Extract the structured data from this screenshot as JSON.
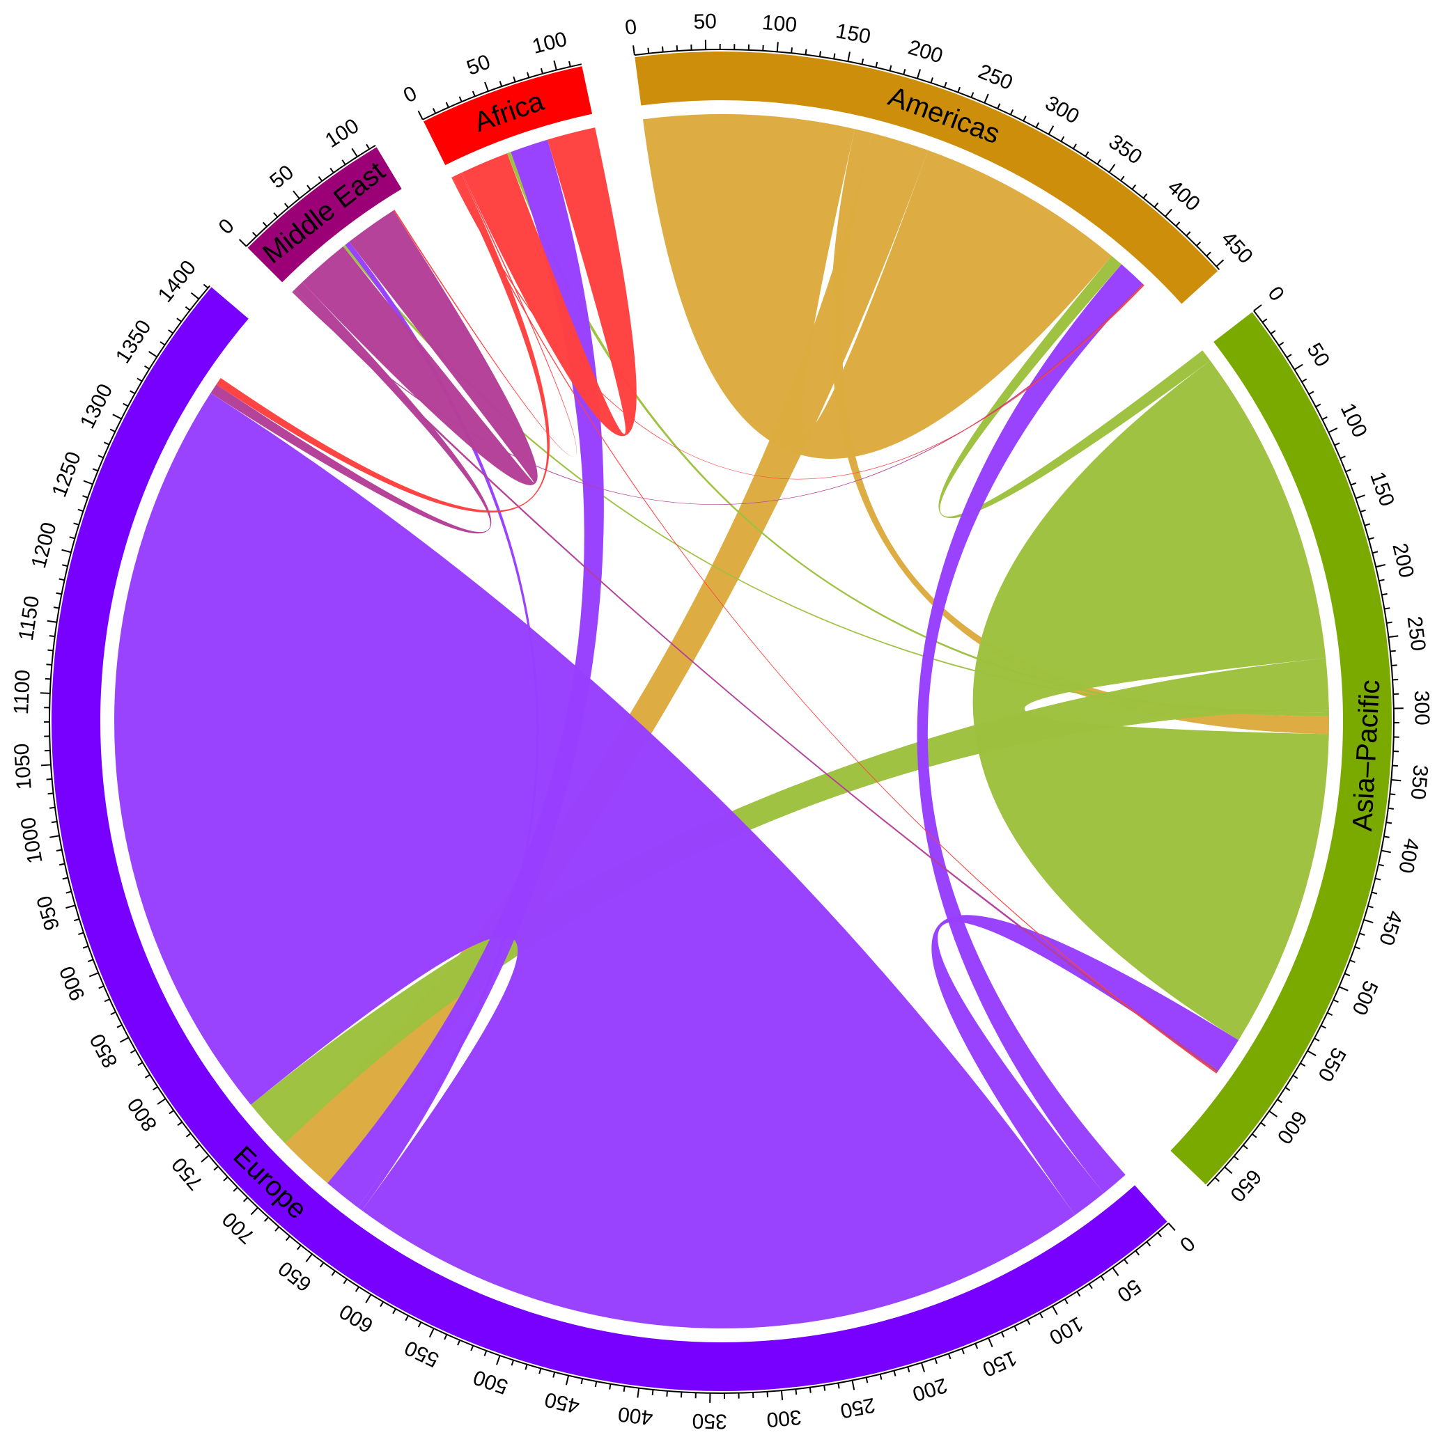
{
  "chart_data": {
    "type": "chord",
    "title": "",
    "sectors": [
      {
        "name": "Americas",
        "total": 453,
        "color": "#cd8f0b",
        "chord_color": "#dcab3f",
        "ticks": [
          "0",
          "50",
          "100",
          "150",
          "200",
          "250",
          "300",
          "350",
          "400",
          "450"
        ]
      },
      {
        "name": "Asia–Pacific",
        "total": 668,
        "color": "#7aaa00",
        "chord_color": "#9dc13f",
        "ticks": [
          "0",
          "50",
          "100",
          "150",
          "200",
          "250",
          "300",
          "350",
          "400",
          "450",
          "500",
          "550",
          "600",
          "650"
        ]
      },
      {
        "name": "Europe",
        "total": 1412,
        "color": "#7700ff",
        "chord_color": "#983fff",
        "ticks": [
          "0",
          "50",
          "100",
          "150",
          "200",
          "250",
          "300",
          "350",
          "400",
          "450",
          "500",
          "550",
          "600",
          "650",
          "700",
          "750",
          "800",
          "850",
          "900",
          "950",
          "1000",
          "1050",
          "1100",
          "1150",
          "1200",
          "1250",
          "1300",
          "1350",
          "1400"
        ]
      },
      {
        "name": "Middle East",
        "total": 115,
        "color": "#9c0076",
        "chord_color": "#b43f98",
        "ticks": [
          "0",
          "50",
          "100"
        ]
      },
      {
        "name": "Africa",
        "total": 118,
        "color": "#ff0000",
        "chord_color": "#ff4040",
        "ticks": [
          "0",
          "50",
          "100"
        ]
      }
    ],
    "flows": [
      {
        "from": "Americas",
        "to": "Americas",
        "value": 165
      },
      {
        "from": "Americas",
        "to": "Asia–Pacific",
        "value": 14
      },
      {
        "from": "Americas",
        "to": "Europe",
        "value": 45
      },
      {
        "from": "Asia–Pacific",
        "to": "Americas",
        "value": 10
      },
      {
        "from": "Asia–Pacific",
        "to": "Asia–Pacific",
        "value": 250
      },
      {
        "from": "Asia–Pacific",
        "to": "Europe",
        "value": 40
      },
      {
        "from": "Asia–Pacific",
        "to": "Middle East",
        "value": 2
      },
      {
        "from": "Asia–Pacific",
        "to": "Africa",
        "value": 3
      },
      {
        "from": "Europe",
        "to": "Americas",
        "value": 22
      },
      {
        "from": "Europe",
        "to": "Asia–Pacific",
        "value": 28
      },
      {
        "from": "Europe",
        "to": "Europe",
        "value": 590
      },
      {
        "from": "Europe",
        "to": "Middle East",
        "value": 4
      },
      {
        "from": "Europe",
        "to": "Africa",
        "value": 30
      },
      {
        "from": "Middle East",
        "to": "Americas",
        "value": 1
      },
      {
        "from": "Middle East",
        "to": "Asia–Pacific",
        "value": 2
      },
      {
        "from": "Middle East",
        "to": "Europe",
        "value": 8
      },
      {
        "from": "Middle East",
        "to": "Middle East",
        "value": 42
      },
      {
        "from": "Africa",
        "to": "Americas",
        "value": 1
      },
      {
        "from": "Africa",
        "to": "Asia–Pacific",
        "value": 1
      },
      {
        "from": "Africa",
        "to": "Europe",
        "value": 6
      },
      {
        "from": "Africa",
        "to": "Middle East",
        "value": 1
      },
      {
        "from": "Africa",
        "to": "Africa",
        "value": 38
      }
    ]
  }
}
